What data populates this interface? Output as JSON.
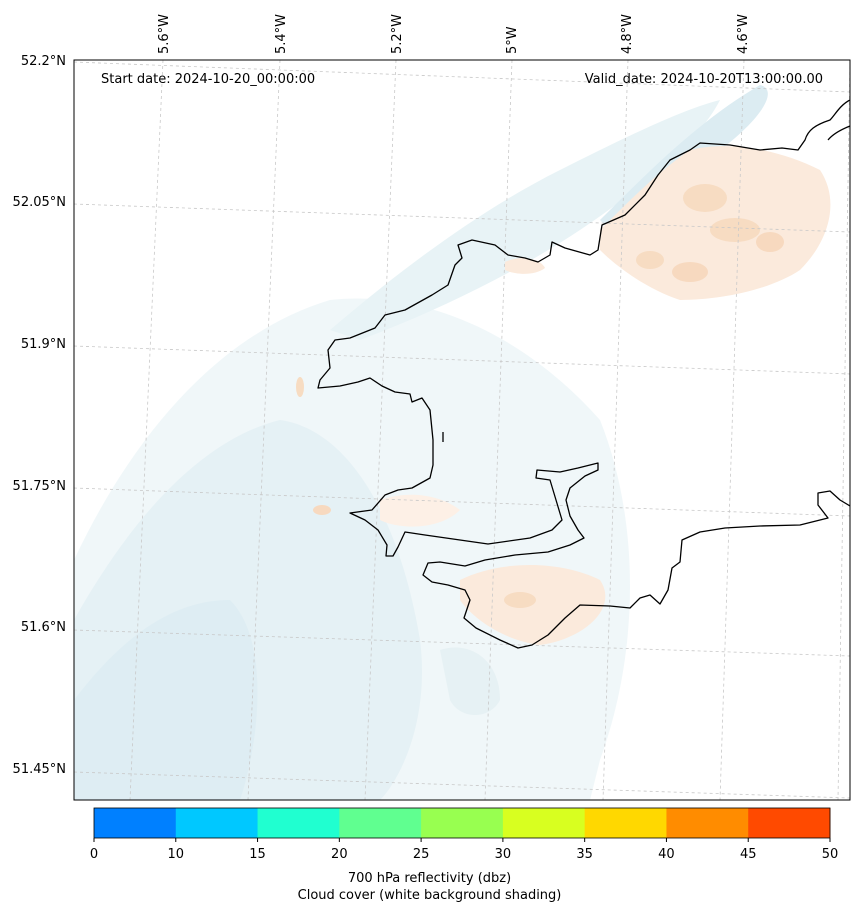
{
  "map": {
    "start_label": "Start date: 2024-10-20_00:00:00",
    "valid_label": "Valid_date: 2024-10-20T13:00:00.00",
    "lon_labels": [
      "5.6°W",
      "5.4°W",
      "5.2°W",
      "5°W",
      "4.8°W",
      "4.6°W"
    ],
    "lat_labels": [
      "52.2°N",
      "52.05°N",
      "51.9°N",
      "51.75°N",
      "51.6°N",
      "51.45°N"
    ],
    "colors": {
      "coastline": "#000000",
      "gridline": "#c8c8c8",
      "cloud_shade": "#dcecf2",
      "reflectivity_low": "#f7d9bf"
    }
  },
  "colorbar": {
    "ticks": [
      "0",
      "10",
      "15",
      "20",
      "25",
      "30",
      "35",
      "40",
      "45",
      "50"
    ],
    "colors": [
      "#0080ff",
      "#00c8ff",
      "#20ffd0",
      "#60ff90",
      "#98ff50",
      "#d8ff20",
      "#ffd800",
      "#ff8c00",
      "#ff4a00"
    ],
    "label_line1": "700 hPa reflectivity (dbz)",
    "label_line2": "Cloud cover (white background shading)"
  }
}
